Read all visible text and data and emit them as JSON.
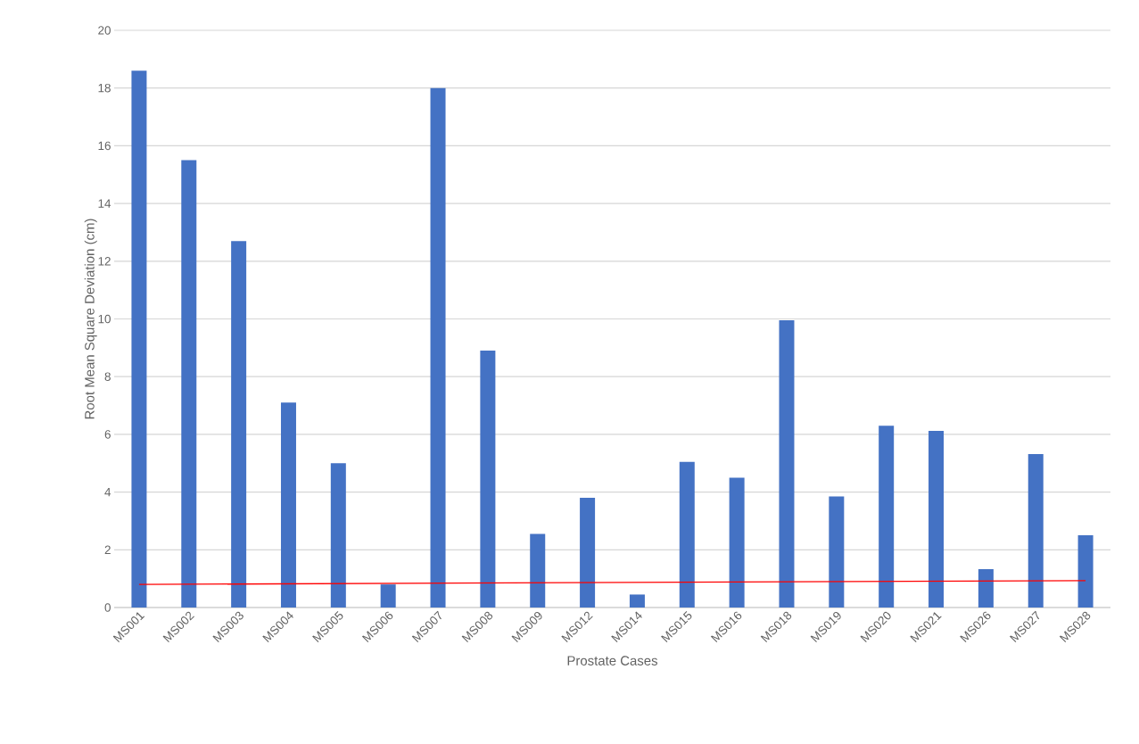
{
  "chart_data": {
    "type": "bar",
    "xlabel": "Prostate Cases",
    "ylabel": "Root Mean Square Deviation (cm)",
    "categories": [
      "MS001",
      "MS002",
      "MS003",
      "MS004",
      "MS005",
      "MS006",
      "MS007",
      "MS008",
      "MS009",
      "MS012",
      "MS014",
      "MS015",
      "MS016",
      "MS018",
      "MS019",
      "MS020",
      "MS021",
      "MS026",
      "MS027",
      "MS028"
    ],
    "series": [
      {
        "color": "#4472c4",
        "values": [
          18.6,
          15.5,
          12.7,
          7.1,
          5.0,
          0.8,
          18.0,
          8.9,
          2.55,
          3.8,
          0.45,
          5.05,
          4.5,
          9.95,
          3.85,
          6.3,
          6.12,
          1.33,
          5.32,
          2.5
        ]
      },
      {
        "type": "line",
        "color": "#ff0000",
        "values": [
          0.8,
          null,
          null,
          null,
          null,
          null,
          null,
          null,
          null,
          null,
          null,
          null,
          null,
          null,
          null,
          null,
          null,
          null,
          null,
          0.93
        ]
      }
    ],
    "ylim": [
      0,
      20
    ],
    "yticks": [
      0,
      2,
      4,
      6,
      8,
      10,
      12,
      14,
      16,
      18,
      20
    ],
    "grid": "y",
    "legend": false
  }
}
